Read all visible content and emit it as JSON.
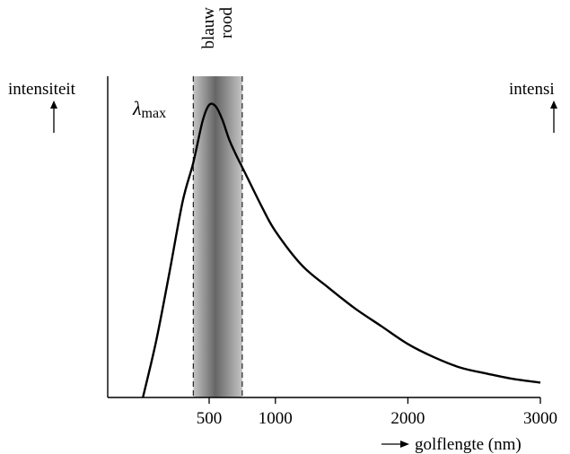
{
  "chart_data": {
    "type": "line",
    "title": "",
    "ylabel": "intensiteit",
    "ylabel_right": "intensi",
    "xlabel": "golflengte (nm)",
    "xlabel_arrow": "→",
    "xlim": [
      -250,
      3000
    ],
    "ylim": [
      0,
      1
    ],
    "xticks": [
      500,
      1000,
      2000,
      3000
    ],
    "xtick_labels": [
      "500",
      "1000",
      "2000",
      "3000"
    ],
    "grid": false,
    "visible_band": {
      "x_start": 380,
      "x_end": 750,
      "labels": [
        "blauw",
        "rood"
      ],
      "color_dark": "#666666",
      "color_light": "#c4c4c4"
    },
    "peak_annotation": {
      "symbol": "λ",
      "subscript": "max"
    },
    "series": [
      {
        "color": "#000000",
        "x": [
          0,
          100,
          200,
          300,
          380,
          450,
          500,
          550,
          600,
          650,
          700,
          750,
          800,
          900,
          1000,
          1200,
          1400,
          1600,
          1800,
          2000,
          2200,
          2400,
          2600,
          2800,
          3000
        ],
        "y": [
          0.0,
          0.19,
          0.42,
          0.66,
          0.79,
          0.93,
          0.985,
          0.98,
          0.935,
          0.87,
          0.82,
          0.775,
          0.73,
          0.64,
          0.56,
          0.445,
          0.37,
          0.3,
          0.24,
          0.18,
          0.135,
          0.1,
          0.08,
          0.062,
          0.05
        ]
      }
    ]
  }
}
